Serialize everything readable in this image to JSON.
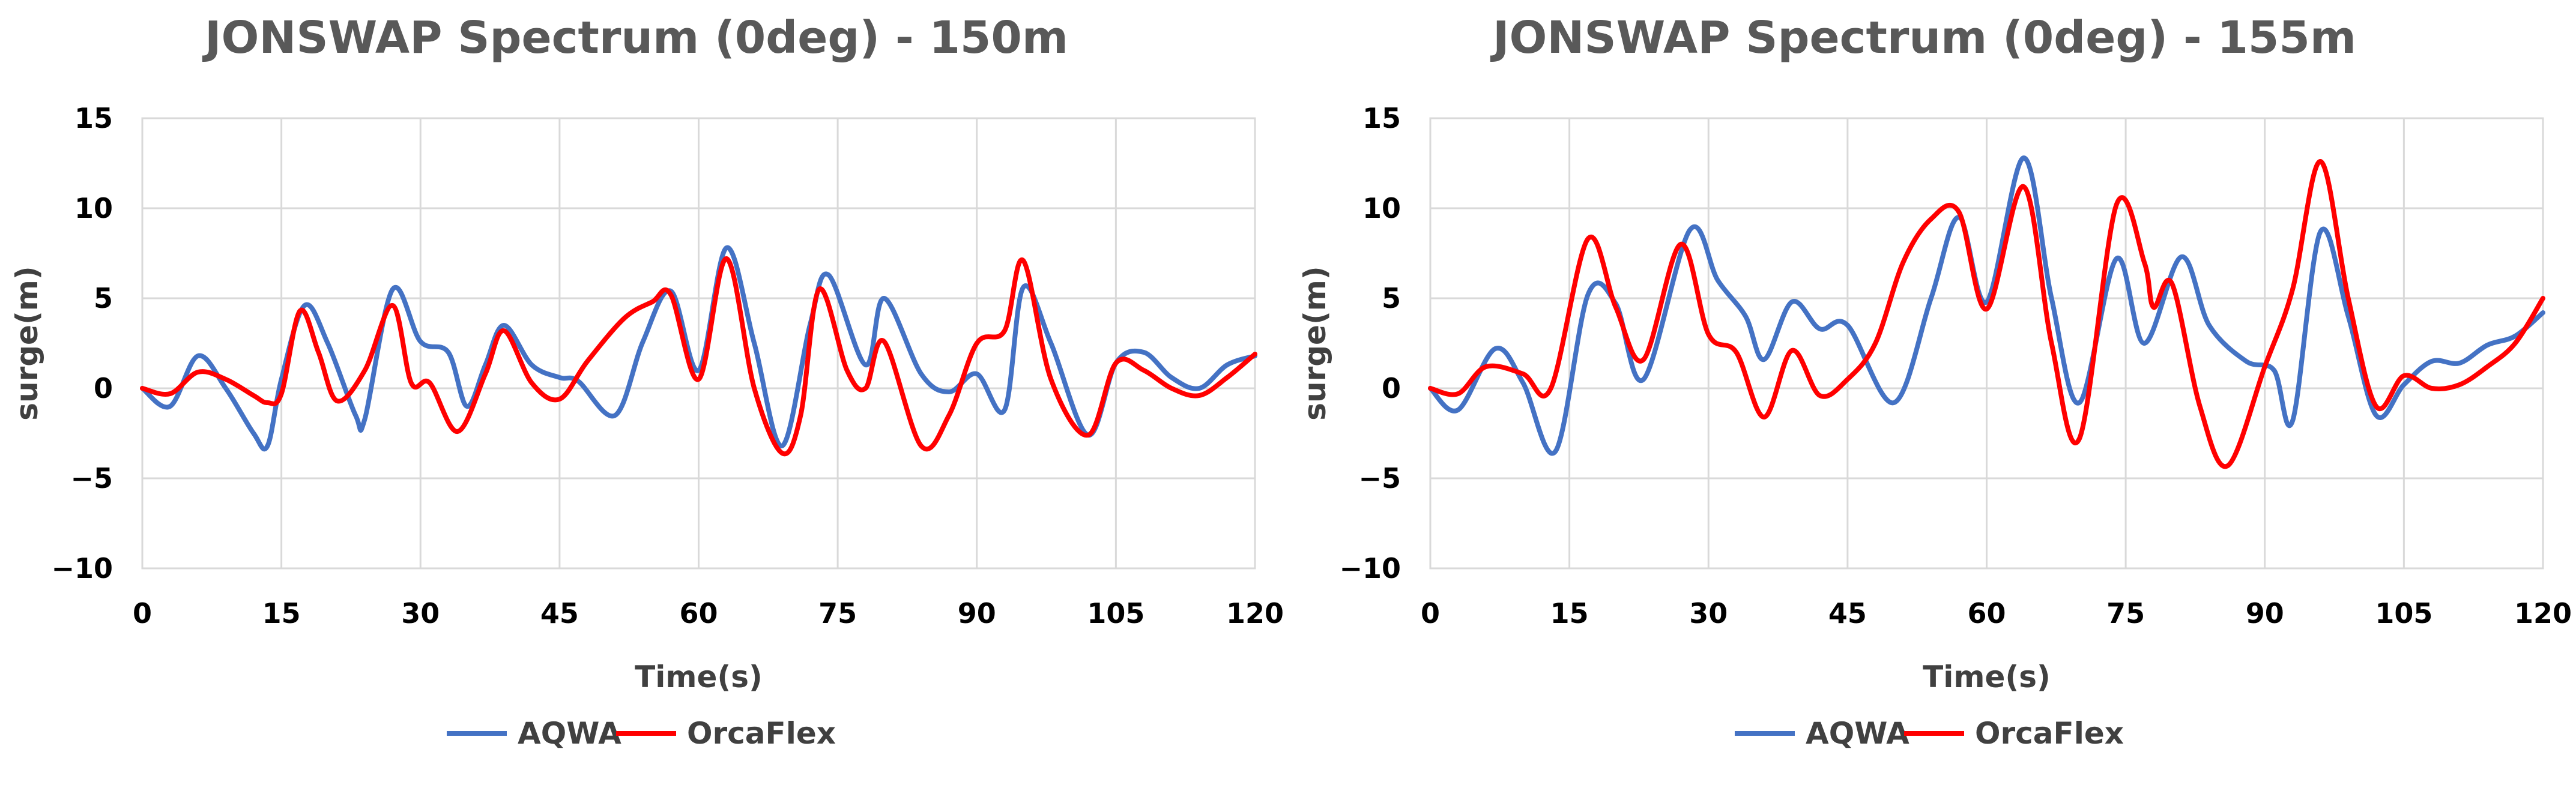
{
  "chart_data": [
    {
      "type": "line",
      "title": "JONSWAP Spectrum (0deg) - 150m",
      "xlabel": "Time(s)",
      "ylabel": "surge(m)",
      "xlim": [
        0,
        120
      ],
      "ylim": [
        -10,
        15
      ],
      "x_ticks": [
        0,
        15,
        30,
        45,
        60,
        75,
        90,
        105,
        120
      ],
      "x_tick_labels": [
        "0",
        "15",
        "30",
        "45",
        "60",
        "75",
        "90",
        "105",
        "120"
      ],
      "y_ticks": [
        -10,
        -5,
        0,
        5,
        10,
        15
      ],
      "y_tick_labels": [
        "−10",
        "−5",
        "0",
        "5",
        "10",
        "15"
      ],
      "grid": true,
      "legend_position": "bottom",
      "series": [
        {
          "name": "AQWA",
          "color": "#4472c4",
          "x": [
            0,
            3,
            6,
            9,
            12,
            13.5,
            15,
            17.5,
            20,
            23,
            24,
            27,
            30,
            33,
            35,
            37,
            39,
            42,
            45,
            47,
            51,
            54,
            57,
            60,
            63,
            66,
            69,
            72,
            74,
            78,
            80,
            84,
            87,
            90,
            93,
            95,
            98,
            102,
            105,
            108,
            111,
            114,
            117,
            120
          ],
          "y": [
            0,
            -1,
            1.8,
            0,
            -2.5,
            -3.2,
            0.5,
            4.6,
            2.5,
            -1.5,
            -1.7,
            5.5,
            2.6,
            2,
            -1,
            1.3,
            3.5,
            1.3,
            0.6,
            0.4,
            -1.5,
            2.6,
            5.4,
            1,
            7.8,
            2.5,
            -3.2,
            3.5,
            6.3,
            1.3,
            5,
            0.8,
            -0.2,
            0.8,
            -1.2,
            5.6,
            2.5,
            -2.6,
            1.4,
            2,
            0.6,
            0,
            1.3,
            1.8
          ]
        },
        {
          "name": "OrcaFlex",
          "color": "#ff0000",
          "x": [
            0,
            3,
            6,
            9,
            12,
            13.5,
            15,
            17,
            19,
            21,
            24,
            27,
            29,
            31,
            34,
            37,
            39,
            42,
            45,
            48,
            52,
            55,
            57,
            60,
            63,
            66,
            69,
            71,
            73,
            76,
            78,
            80,
            84,
            87,
            90,
            93,
            95,
            98,
            102,
            105,
            108,
            111,
            114,
            117,
            120
          ],
          "y": [
            0,
            -0.3,
            0.9,
            0.5,
            -0.4,
            -0.8,
            -0.3,
            4.3,
            2,
            -0.7,
            1,
            4.6,
            0.3,
            0.3,
            -2.4,
            0.8,
            3.2,
            0.3,
            -0.6,
            1.5,
            3.9,
            4.8,
            5.2,
            0.5,
            7.2,
            0,
            -3.6,
            -1.5,
            5.5,
            1,
            0,
            2.6,
            -3.2,
            -1.5,
            2.5,
            3.2,
            7.1,
            0.5,
            -2.6,
            1.4,
            1,
            0,
            -0.4,
            0.6,
            1.9
          ]
        }
      ]
    },
    {
      "type": "line",
      "title": "JONSWAP Spectrum (0deg) - 155m",
      "xlabel": "Time(s)",
      "ylabel": "surge(m)",
      "xlim": [
        0,
        120
      ],
      "ylim": [
        -10,
        15
      ],
      "x_ticks": [
        0,
        15,
        30,
        45,
        60,
        75,
        90,
        105,
        120
      ],
      "x_tick_labels": [
        "0",
        "15",
        "30",
        "45",
        "60",
        "75",
        "90",
        "105",
        "120"
      ],
      "y_ticks": [
        -10,
        -5,
        0,
        5,
        10,
        15
      ],
      "y_tick_labels": [
        "−10",
        "−5",
        "0",
        "5",
        "10",
        "15"
      ],
      "grid": true,
      "legend_position": "bottom",
      "series": [
        {
          "name": "AQWA",
          "color": "#4472c4",
          "x": [
            0,
            3,
            7,
            10,
            13.5,
            17,
            20,
            23,
            28,
            31,
            34,
            36,
            39,
            42,
            45,
            50,
            54,
            57,
            60,
            64,
            67,
            70,
            74,
            77,
            81,
            84,
            88,
            91,
            93,
            96,
            99,
            102,
            105,
            108,
            111,
            114,
            117,
            120
          ],
          "y": [
            0,
            -1.2,
            2.2,
            0.3,
            -3.5,
            5.2,
            4.7,
            0.5,
            8.8,
            6,
            4,
            1.6,
            4.8,
            3.3,
            3.5,
            -0.8,
            5,
            9.5,
            4.8,
            12.8,
            5,
            -0.8,
            7.2,
            2.5,
            7.3,
            3.5,
            1.5,
            1,
            -1.8,
            8.7,
            4,
            -1.5,
            0.2,
            1.5,
            1.4,
            2.4,
            2.9,
            4.2
          ]
        },
        {
          "name": "OrcaFlex",
          "color": "#ff0000",
          "x": [
            0,
            3,
            6,
            10,
            13,
            17,
            20,
            23,
            27,
            30,
            33,
            36,
            39,
            42,
            45,
            48,
            51,
            54,
            57,
            60,
            64,
            67,
            70,
            74,
            77,
            78,
            80,
            83,
            86,
            90,
            93,
            96,
            99,
            102,
            105,
            108,
            111,
            114,
            117,
            120
          ],
          "y": [
            0,
            -0.3,
            1.2,
            0.8,
            0,
            8.3,
            4.5,
            1.6,
            8,
            3,
            2,
            -1.6,
            2.1,
            -0.4,
            0.5,
            2.5,
            7,
            9.4,
            9.8,
            4.4,
            11.2,
            2.5,
            -2.8,
            10.2,
            7,
            4.5,
            5.8,
            -1,
            -4.3,
            1.2,
            5.5,
            12.6,
            5,
            -1,
            0.7,
            0,
            0.2,
            1.2,
            2.5,
            5
          ]
        }
      ]
    }
  ]
}
